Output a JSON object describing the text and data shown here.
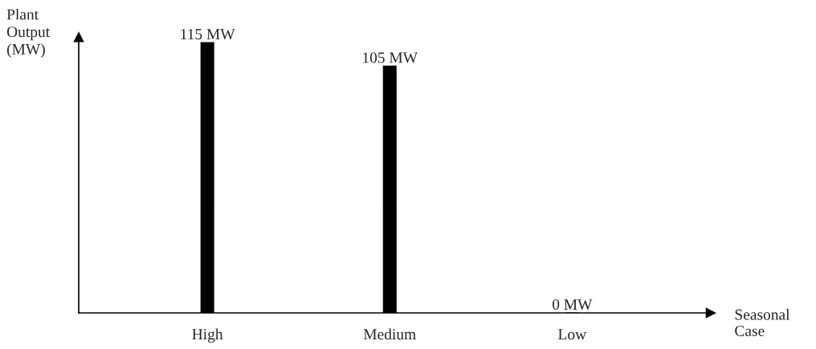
{
  "chart_data": {
    "type": "bar",
    "ylabel": "Plant Output (MW)",
    "xlabel": "Seasonal Case",
    "categories": [
      "High",
      "Medium",
      "Low"
    ],
    "values": [
      115,
      105,
      0
    ],
    "value_labels": [
      "115 MW",
      "105 MW",
      "0 MW"
    ],
    "color": "#000000",
    "grid": false,
    "legend": false
  }
}
